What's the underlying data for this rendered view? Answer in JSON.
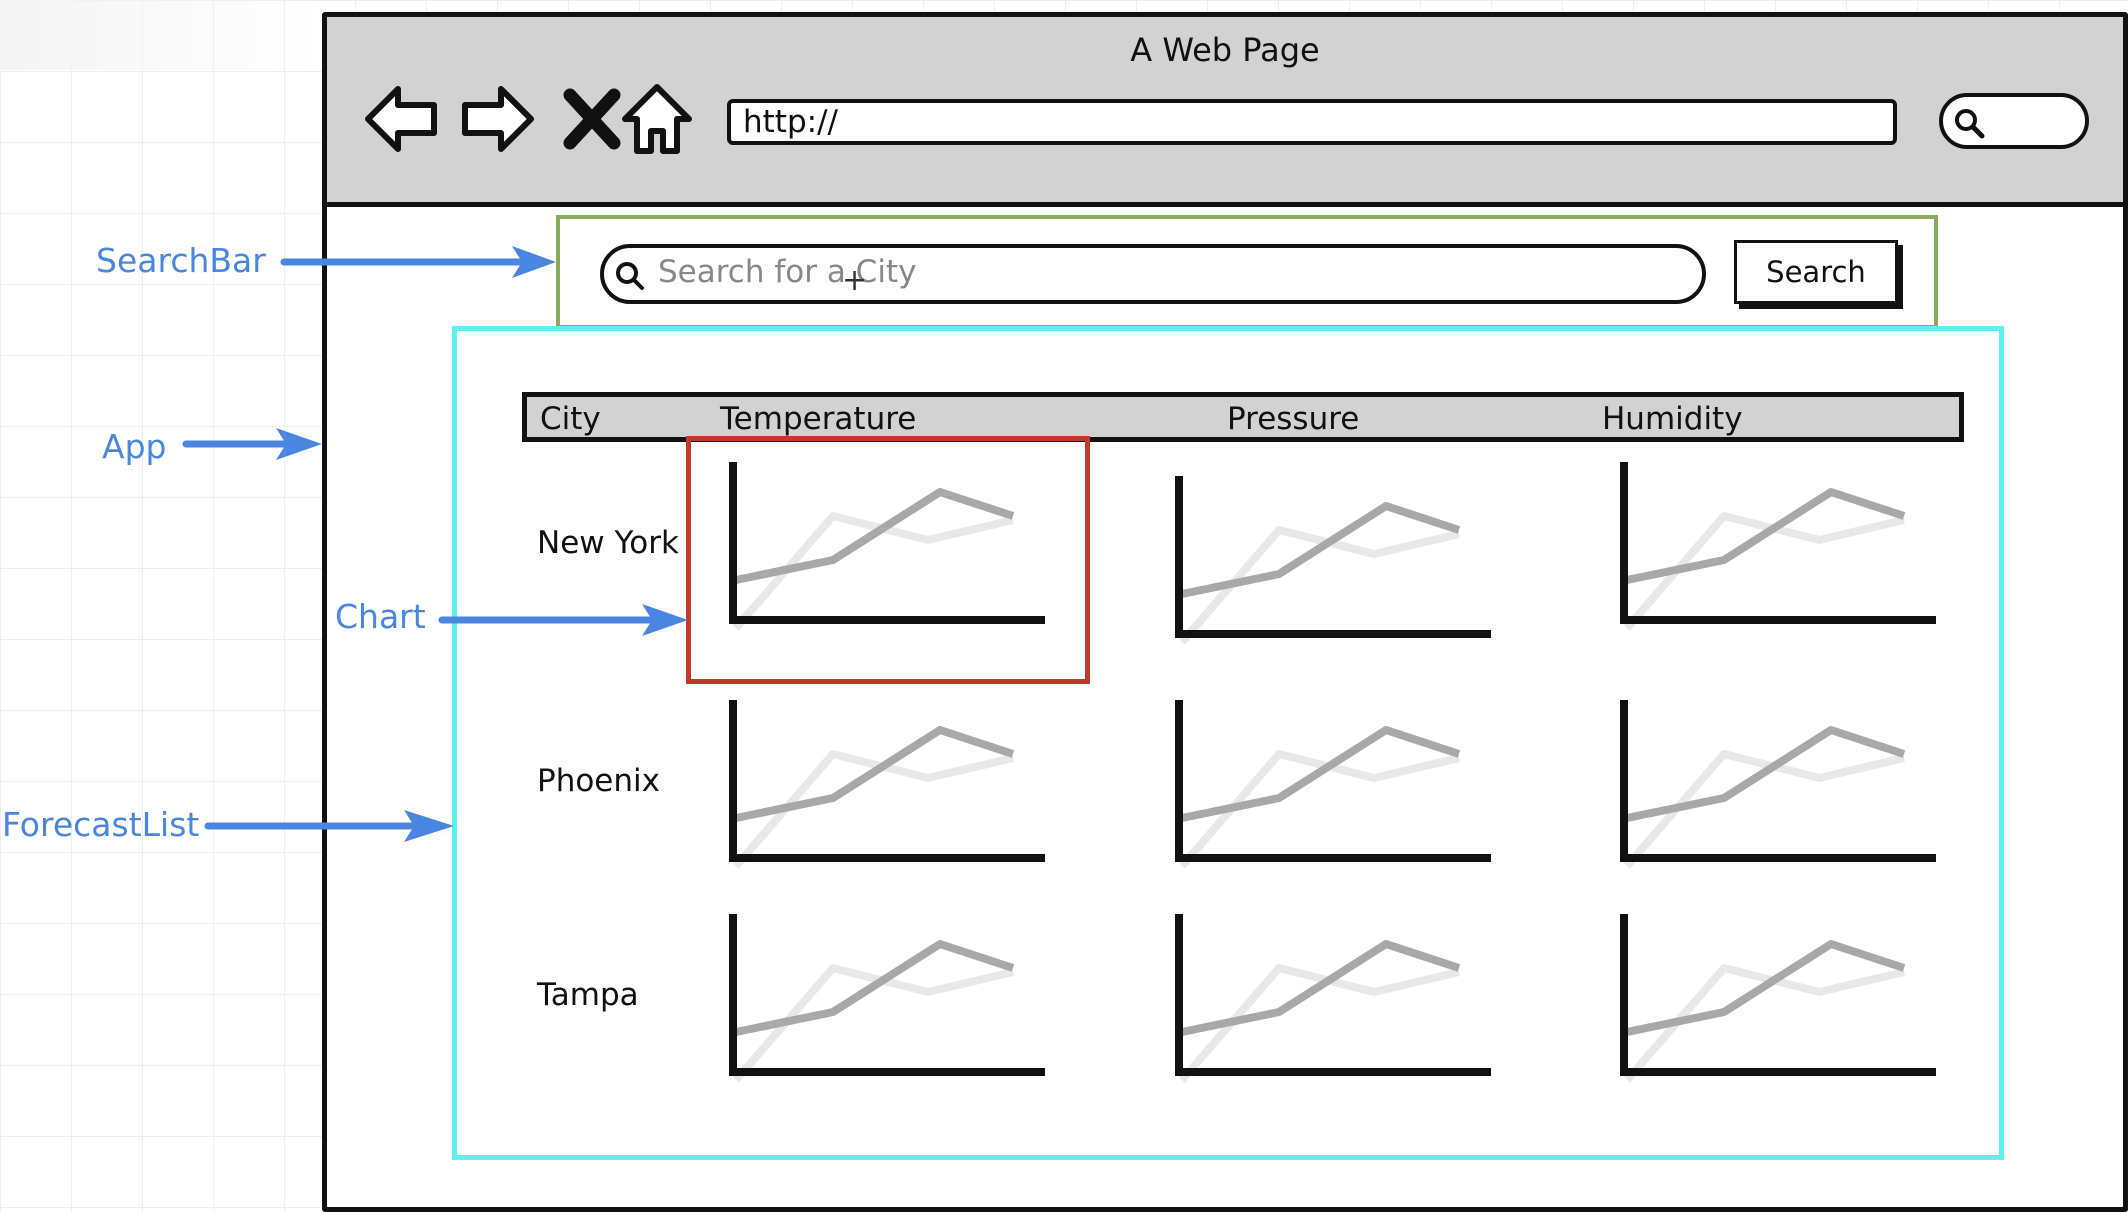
{
  "browser": {
    "title": "A Web Page",
    "address": "http://",
    "nav_icons": [
      "back-arrow-icon",
      "forward-arrow-icon",
      "close-x-icon",
      "home-icon"
    ]
  },
  "search_bar": {
    "placeholder": "Search for a City",
    "button_label": "Search"
  },
  "forecast_table": {
    "columns": [
      "City",
      "Temperature",
      "Pressure",
      "Humidity"
    ],
    "rows": [
      {
        "city": "New York"
      },
      {
        "city": "Phoenix"
      },
      {
        "city": "Tampa"
      }
    ]
  },
  "annotations": {
    "searchbar": "SearchBar",
    "app": "App",
    "chart": "Chart",
    "forecastlist": "ForecastList"
  },
  "colors": {
    "annotation": "#4a86e0",
    "searchbar_box": "#8aab5a",
    "app_box": "#5ff0f0",
    "chart_box": "#c0392b",
    "chrome": "#d2d2d2"
  }
}
